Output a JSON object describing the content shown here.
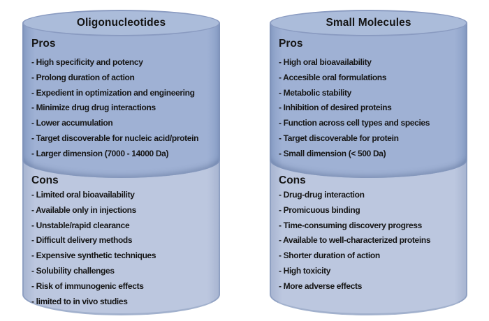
{
  "figure": {
    "type": "comparison-diagram",
    "colors": {
      "background": "#ffffff",
      "cylinder_top_fill": "#abbcda",
      "pros_section_fill": "#9fb1d4",
      "cons_section_fill": "#bcc7df",
      "outline": "#8a9bc1",
      "text": "#161616"
    },
    "panels": [
      {
        "id": "oligonucleotides",
        "title": "Oligonucleotides",
        "sections": [
          {
            "heading": "Pros",
            "items": [
              "- High specificity and potency",
              "- Prolong duration of action",
              "- Expedient in optimization and engineering",
              "- Minimize drug drug interactions",
              "- Lower accumulation",
              "- Target discoverable for nucleic acid/protein",
              "- Larger dimension (7000 - 14000 Da)"
            ]
          },
          {
            "heading": "Cons",
            "items": [
              "- Limited oral bioavailability",
              "- Available only in injections",
              "- Unstable/rapid clearance",
              "- Difficult delivery methods",
              "- Expensive synthetic techniques",
              "- Solubility challenges",
              "- Risk of immunogenic effects",
              "- limited to in vivo studies"
            ]
          }
        ]
      },
      {
        "id": "small-molecules",
        "title": "Small Molecules",
        "sections": [
          {
            "heading": "Pros",
            "items": [
              "- High oral bioavailability",
              "- Accesible oral formulations",
              "- Metabolic stability",
              "- Inhibition of desired proteins",
              "- Function across cell types and species",
              "- Target discoverable for protein",
              "- Small dimension (< 500 Da)"
            ]
          },
          {
            "heading": "Cons",
            "items": [
              "- Drug-drug interaction",
              "- Promicuous binding",
              "- Time-consuming discovery progress",
              "- Available to well-characterized proteins",
              "- Shorter duration of action",
              "- High toxicity",
              "- More adverse effects"
            ]
          }
        ]
      }
    ]
  }
}
